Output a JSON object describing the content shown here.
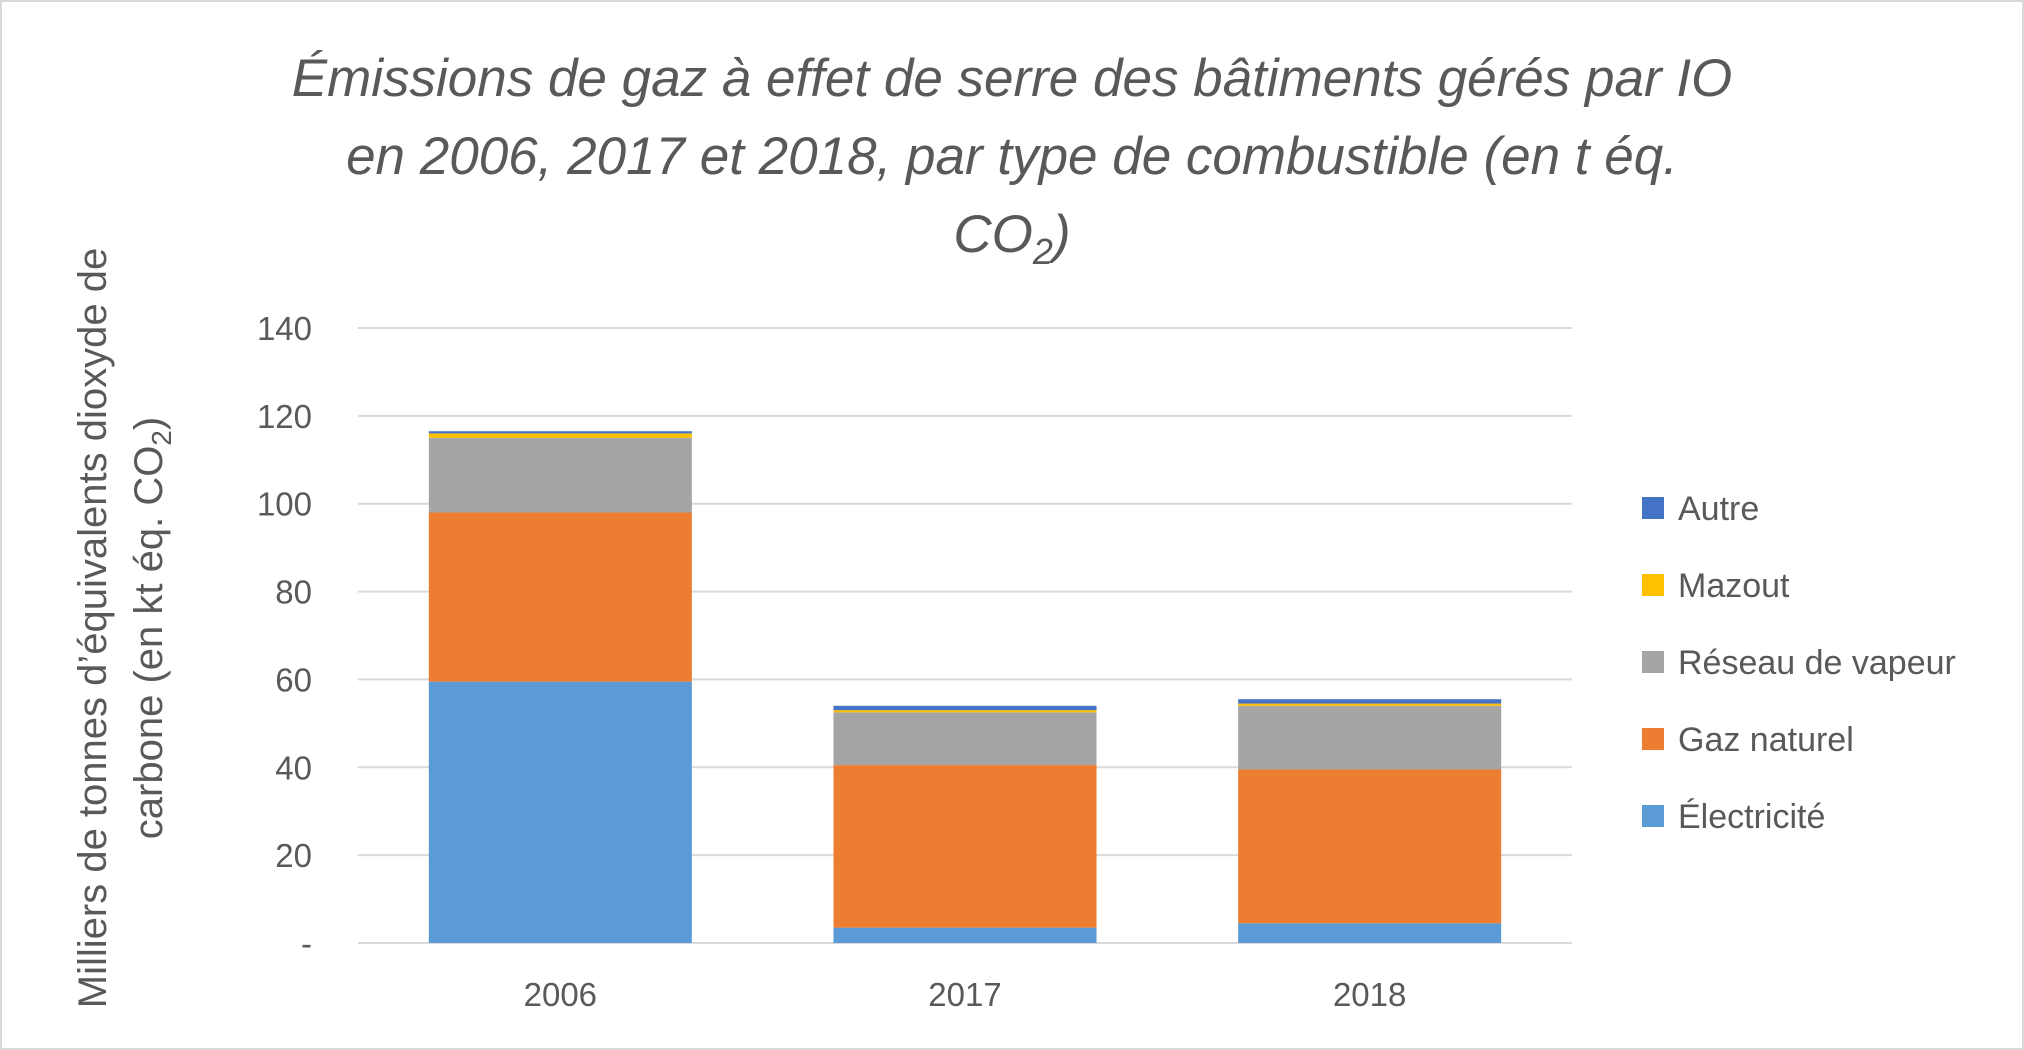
{
  "chart_data": {
    "type": "bar",
    "stacked": true,
    "title_line1": "Émissions de gaz à effet de serre des bâtiments gérés par IO",
    "title_line2": "en 2006, 2017 et 2018, par type de combustible (en t éq.",
    "title_line3_main": "CO",
    "title_line3_sub": "2",
    "title_line3_end": ")",
    "ylabel_line1": "Milliers de tonnes d’équivalents dioxyde de",
    "ylabel_line2_main": "carbone (en kt éq. CO",
    "ylabel_line2_sub": "2",
    "ylabel_line2_end": ")",
    "xlabel": "",
    "categories": [
      "2006",
      "2017",
      "2018"
    ],
    "ylim": [
      0,
      140
    ],
    "yticks": [
      0,
      20,
      40,
      60,
      80,
      100,
      120,
      140
    ],
    "ytick_labels": [
      "-",
      "20",
      "40",
      "60",
      "80",
      "100",
      "120",
      "140"
    ],
    "grid": true,
    "legend_position": "right",
    "series": [
      {
        "name": "Électricité",
        "color": "#5b9bd5",
        "values": [
          59.5,
          3.5,
          4.5
        ]
      },
      {
        "name": "Gaz naturel",
        "color": "#ed7d31",
        "values": [
          38.5,
          37.0,
          35.0
        ]
      },
      {
        "name": "Réseau de vapeur",
        "color": "#a5a5a5",
        "values": [
          17.0,
          12.0,
          14.5
        ]
      },
      {
        "name": "Mazout",
        "color": "#ffc000",
        "values": [
          1.0,
          0.5,
          0.5
        ]
      },
      {
        "name": "Autre",
        "color": "#4472c4",
        "values": [
          0.5,
          1.0,
          1.0
        ]
      }
    ],
    "legend_order": [
      "Autre",
      "Mazout",
      "Réseau de vapeur",
      "Gaz naturel",
      "Électricité"
    ]
  }
}
